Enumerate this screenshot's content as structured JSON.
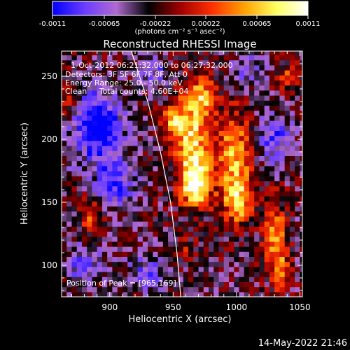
{
  "chart_data": {
    "type": "heatmap",
    "title": "Reconstructed RHESSI Image",
    "xlabel": "Heliocentric X (arcsec)",
    "ylabel": "Heliocentric Y (arcsec)",
    "xlim": [
      862,
      1052
    ],
    "ylim": [
      75,
      270
    ],
    "x_ticks": [
      "900",
      "950",
      "1000",
      "1050"
    ],
    "y_ticks": [
      "100",
      "150",
      "200",
      "250"
    ],
    "colorbar": {
      "range": [
        -0.0011,
        0.0011
      ],
      "tick_labels": [
        "-0.0011",
        "-0.00065",
        "-0.00022",
        "0.00022",
        "0.00065",
        "0.0011"
      ],
      "units_label": "(photons cm⁻² s⁻¹ asec⁻²)",
      "colors": [
        "#0000ff",
        "#6a3cff",
        "#b06ad0",
        "#000000",
        "#a00000",
        "#ff3000",
        "#ffa000",
        "#ffff60",
        "#ffffff"
      ]
    },
    "annotations": [
      "1-Oct-2012 06:21:32.000 to 06:27:32.000",
      "Detectors: 3F 5F 6F 7F 8F, Att 0",
      "Energy Range: 25.0 - 50.0 keV",
      "Clean     Total counts: 4.60E+04"
    ],
    "peak_label": "Position of Peak = [965,169]",
    "peak": [
      965,
      169
    ],
    "limb": [
      [
        917,
        270
      ],
      [
        930,
        230
      ],
      [
        940,
        190
      ],
      [
        948,
        150
      ],
      [
        953,
        110
      ],
      [
        956,
        75
      ]
    ],
    "emission_blobs": [
      {
        "x": 965,
        "y": 200,
        "sx": 9,
        "sy": 28,
        "a": 0.95
      },
      {
        "x": 968,
        "y": 165,
        "sx": 8,
        "sy": 12,
        "a": 1.0
      },
      {
        "x": 950,
        "y": 215,
        "sx": 6,
        "sy": 10,
        "a": 0.7
      },
      {
        "x": 975,
        "y": 235,
        "sx": 7,
        "sy": 10,
        "a": 0.6
      },
      {
        "x": 998,
        "y": 185,
        "sx": 10,
        "sy": 25,
        "a": 0.8
      },
      {
        "x": 1002,
        "y": 150,
        "sx": 8,
        "sy": 12,
        "a": 0.7
      },
      {
        "x": 1030,
        "y": 125,
        "sx": 6,
        "sy": 18,
        "a": 0.75
      },
      {
        "x": 1035,
        "y": 95,
        "sx": 5,
        "sy": 10,
        "a": 0.6
      },
      {
        "x": 885,
        "y": 140,
        "sx": 6,
        "sy": 8,
        "a": 0.6
      },
      {
        "x": 868,
        "y": 230,
        "sx": 5,
        "sy": 8,
        "a": 0.5
      },
      {
        "x": 1040,
        "y": 250,
        "sx": 6,
        "sy": 8,
        "a": 0.45
      },
      {
        "x": 960,
        "y": 112,
        "sx": 5,
        "sy": 6,
        "a": 0.4
      }
    ],
    "negative_blobs": [
      {
        "x": 890,
        "y": 210,
        "sx": 14,
        "sy": 20,
        "a": -0.9
      },
      {
        "x": 905,
        "y": 165,
        "sx": 10,
        "sy": 14,
        "a": -0.6
      },
      {
        "x": 880,
        "y": 100,
        "sx": 10,
        "sy": 10,
        "a": -0.5
      },
      {
        "x": 930,
        "y": 95,
        "sx": 12,
        "sy": 10,
        "a": -0.4
      },
      {
        "x": 1030,
        "y": 200,
        "sx": 10,
        "sy": 14,
        "a": -0.5
      },
      {
        "x": 1010,
        "y": 255,
        "sx": 10,
        "sy": 8,
        "a": -0.4
      },
      {
        "x": 935,
        "y": 255,
        "sx": 8,
        "sy": 8,
        "a": -0.4
      }
    ]
  },
  "timestamp": "14-May-2022 21:46"
}
